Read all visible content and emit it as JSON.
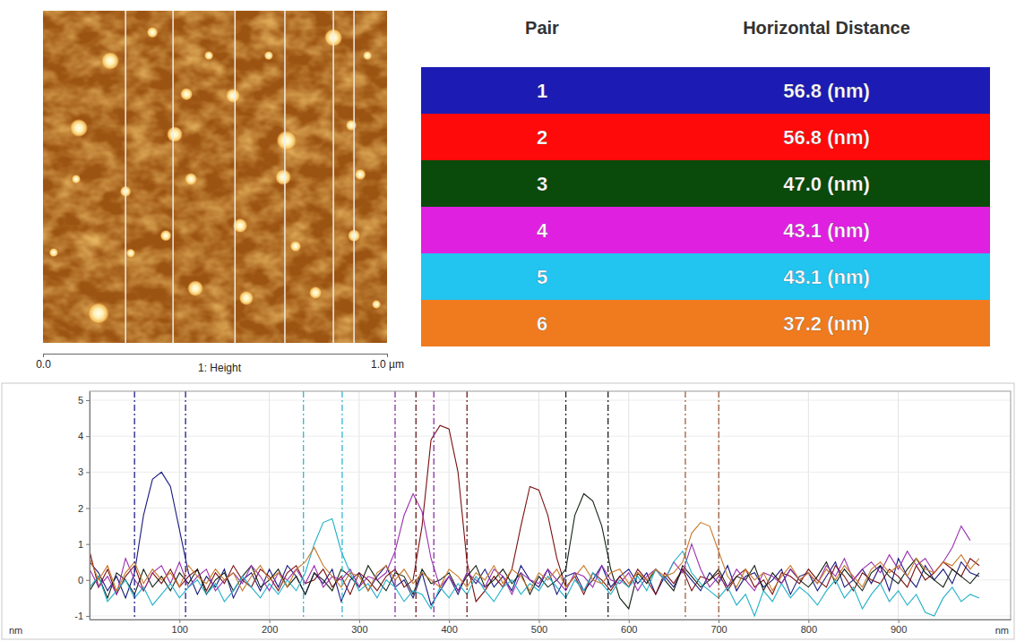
{
  "chart_data": {
    "type": "line",
    "x_label": "nm",
    "y_label": "nm",
    "xlim": [
      0,
      1025
    ],
    "xticks": [
      100,
      200,
      300,
      400,
      500,
      600,
      700,
      800,
      900
    ],
    "ylim": [
      -1.1,
      5.25
    ],
    "yticks": [
      -1,
      0,
      1,
      2,
      3,
      4,
      5
    ],
    "grid": true,
    "x": [
      0,
      10,
      20,
      30,
      40,
      50,
      60,
      70,
      80,
      90,
      100,
      110,
      120,
      130,
      140,
      150,
      160,
      170,
      180,
      190,
      200,
      210,
      220,
      230,
      240,
      250,
      260,
      270,
      280,
      290,
      300,
      310,
      320,
      330,
      340,
      350,
      360,
      370,
      380,
      390,
      400,
      410,
      420,
      430,
      440,
      450,
      460,
      470,
      480,
      490,
      500,
      510,
      520,
      530,
      540,
      550,
      560,
      570,
      580,
      590,
      600,
      610,
      620,
      630,
      640,
      650,
      660,
      670,
      680,
      690,
      700,
      710,
      720,
      730,
      740,
      750,
      760,
      770,
      780,
      790,
      800,
      810,
      820,
      830,
      840,
      850,
      860,
      870,
      880,
      890,
      900,
      910,
      920,
      930,
      940,
      950,
      960,
      970,
      980,
      990
    ],
    "series": [
      {
        "color": "#1a1a80",
        "values": [
          0.5,
          0.2,
          -0.3,
          0.1,
          -0.5,
          0.2,
          1.8,
          2.8,
          3.0,
          2.6,
          1.4,
          0.2,
          -0.4,
          0.1,
          -0.2,
          0.3,
          -0.5,
          0.0,
          0.2,
          -0.3,
          0.3,
          -0.2,
          0.4,
          0.1,
          -0.4,
          0.2,
          -0.1,
          0.3,
          -0.6,
          0.0,
          0.2,
          -0.3,
          0.1,
          0.4,
          -0.2,
          0.0,
          -0.5,
          0.2,
          -0.7,
          -0.3,
          0.1,
          -0.4,
          0.2,
          -0.1,
          0.3,
          -0.2,
          0.1,
          -0.3,
          0.4,
          0.0,
          -0.2,
          0.3,
          -0.4,
          0.1,
          0.2,
          -0.3,
          0.0,
          0.4,
          -0.2,
          0.1,
          0.3,
          -0.1,
          0.2,
          -0.4,
          0.1,
          -0.2,
          0.3,
          0.0,
          -0.3,
          0.2,
          -0.1,
          0.4,
          -0.3,
          0.1,
          0.2,
          -0.2,
          0.0,
          0.3,
          -0.4,
          0.1,
          0.2,
          -0.3,
          0.1,
          0.5,
          -0.2,
          0.0,
          0.3,
          -0.1,
          0.4,
          -0.3,
          0.6,
          0.1,
          -0.2,
          0.4,
          0.0,
          0.3,
          -0.1,
          0.5,
          0.2,
          0.1
        ]
      },
      {
        "color": "#7a1010",
        "values": [
          0.8,
          -0.2,
          0.3,
          -0.4,
          0.1,
          0.4,
          -0.3,
          0.2,
          -0.1,
          0.3,
          -0.2,
          0.1,
          0.3,
          -0.3,
          0.2,
          -0.1,
          0.4,
          0.0,
          -0.2,
          0.3,
          0.1,
          -0.3,
          0.2,
          0.4,
          -0.1,
          0.0,
          0.3,
          -0.2,
          0.1,
          -0.4,
          0.2,
          0.0,
          -0.3,
          0.1,
          0.3,
          -0.2,
          0.0,
          1.5,
          3.9,
          4.3,
          4.2,
          3.0,
          0.5,
          -0.6,
          -0.3,
          0.1,
          -0.2,
          0.3,
          1.5,
          2.6,
          2.5,
          1.8,
          0.6,
          -0.2,
          0.1,
          -0.4,
          0.2,
          0.0,
          -0.3,
          0.1,
          -0.2,
          0.3,
          0.0,
          -0.4,
          0.2,
          -0.1,
          0.3,
          -0.3,
          0.1,
          0.0,
          0.2,
          -0.3,
          0.1,
          0.3,
          -0.2,
          0.0,
          -0.4,
          0.2,
          0.1,
          -0.1,
          0.3,
          0.0,
          -0.2,
          0.4,
          0.1,
          -0.3,
          0.2,
          0.0,
          -0.1,
          0.3,
          0.1,
          -0.2,
          0.4,
          0.0,
          0.2,
          0.5,
          0.3,
          0.1,
          0.6,
          0.4
        ]
      },
      {
        "color": "#142414",
        "values": [
          -0.3,
          0.1,
          -0.5,
          0.2,
          0.0,
          -0.4,
          0.3,
          -0.2,
          0.1,
          -0.3,
          0.2,
          -0.1,
          0.3,
          -0.4,
          0.0,
          0.2,
          -0.3,
          0.1,
          0.4,
          -0.2,
          0.0,
          0.3,
          -0.2,
          0.1,
          -0.4,
          0.2,
          0.0,
          -0.3,
          0.3,
          0.1,
          -0.2,
          0.4,
          0.0,
          -0.3,
          0.2,
          0.1,
          -0.4,
          0.3,
          -0.1,
          0.0,
          0.2,
          -0.3,
          0.1,
          0.4,
          -0.2,
          0.0,
          0.3,
          -0.1,
          0.2,
          -0.4,
          0.1,
          -0.2,
          0.0,
          0.3,
          1.8,
          2.4,
          2.2,
          1.5,
          0.3,
          -0.5,
          -0.8,
          0.2,
          -0.1,
          0.3,
          0.0,
          -0.3,
          0.4,
          0.1,
          -0.2,
          0.0,
          0.3,
          -0.2,
          0.1,
          0.0,
          0.4,
          -0.3,
          0.2,
          -0.1,
          0.3,
          0.0,
          -0.2,
          0.1,
          0.5,
          -0.1,
          0.3,
          0.0,
          -0.3,
          0.2,
          0.4,
          0.1,
          -0.1,
          0.3,
          0.6,
          0.2,
          0.0,
          -0.2,
          0.3,
          0.1,
          -0.1,
          0.2
        ]
      },
      {
        "color": "#9a30b0",
        "values": [
          0.3,
          -0.2,
          0.1,
          -0.4,
          0.6,
          0.0,
          -0.3,
          0.2,
          0.4,
          -0.1,
          0.5,
          -0.2,
          0.1,
          0.3,
          -0.3,
          0.0,
          0.2,
          -0.1,
          0.4,
          0.1,
          -0.3,
          0.2,
          0.0,
          0.3,
          -0.1,
          0.4,
          -0.2,
          0.1,
          0.0,
          0.3,
          -0.2,
          0.1,
          0.0,
          0.2,
          0.8,
          1.8,
          2.4,
          1.9,
          0.6,
          -0.2,
          0.1,
          -0.3,
          0.2,
          0.0,
          -0.2,
          0.3,
          0.1,
          -0.4,
          0.2,
          0.0,
          -0.1,
          0.3,
          0.0,
          -0.3,
          0.2,
          0.1,
          -0.2,
          0.4,
          0.0,
          -0.1,
          0.2,
          -0.3,
          0.1,
          0.3,
          0.0,
          0.5,
          0.2,
          1.0,
          0.3,
          -0.2,
          0.1,
          -0.2,
          0.3,
          0.0,
          -0.3,
          0.2,
          0.1,
          -0.1,
          0.3,
          0.0,
          0.2,
          -0.1,
          0.4,
          0.1,
          0.6,
          0.0,
          0.3,
          0.5,
          0.2,
          0.7,
          0.3,
          0.8,
          0.4,
          0.6,
          0.2,
          0.5,
          0.9,
          1.5,
          1.1,
          null
        ]
      },
      {
        "color": "#20b0c8",
        "values": [
          -0.2,
          0.1,
          -0.6,
          -0.3,
          0.0,
          -0.5,
          -0.2,
          -0.7,
          -0.4,
          -0.1,
          -0.5,
          -0.2,
          0.0,
          -0.4,
          -0.1,
          -0.6,
          -0.3,
          0.1,
          -0.2,
          -0.5,
          -0.1,
          -0.4,
          0.0,
          -0.3,
          0.2,
          1.0,
          1.6,
          1.7,
          0.8,
          0.2,
          -0.3,
          -0.1,
          -0.5,
          0.0,
          -0.2,
          -0.6,
          -0.3,
          -0.4,
          -0.8,
          -0.2,
          -0.5,
          -0.1,
          -0.4,
          0.1,
          -0.3,
          -0.6,
          -0.2,
          0.0,
          -0.4,
          -0.1,
          -0.3,
          0.1,
          -0.2,
          -0.5,
          0.0,
          -0.3,
          0.2,
          -0.1,
          -0.4,
          0.0,
          -0.2,
          0.1,
          -0.3,
          0.3,
          0.0,
          0.5,
          0.8,
          0.2,
          -0.1,
          -0.3,
          -0.5,
          -0.2,
          -0.7,
          -0.4,
          -1.0,
          -0.3,
          -0.6,
          -0.1,
          -0.5,
          -0.2,
          -0.4,
          -0.7,
          -0.3,
          0.0,
          -0.5,
          -0.2,
          -0.8,
          -0.4,
          -0.1,
          -0.6,
          -0.3,
          -0.7,
          -0.4,
          -0.9,
          -1.0,
          -0.5,
          -0.2,
          -0.6,
          -0.4,
          -0.5
        ]
      },
      {
        "color": "#c87828",
        "values": [
          0.6,
          0.0,
          0.4,
          -0.3,
          0.2,
          0.5,
          -0.1,
          0.3,
          0.0,
          0.2,
          -0.2,
          0.4,
          0.1,
          -0.1,
          0.3,
          0.0,
          0.2,
          -0.3,
          0.1,
          0.4,
          0.0,
          0.2,
          -0.2,
          0.3,
          0.5,
          0.9,
          0.4,
          0.1,
          -0.2,
          0.2,
          0.1,
          -0.3,
          0.2,
          0.4,
          0.0,
          0.3,
          -0.1,
          0.2,
          0.0,
          -0.2,
          0.3,
          0.1,
          -0.2,
          0.2,
          0.0,
          0.4,
          -0.1,
          0.3,
          0.1,
          -0.3,
          0.2,
          0.0,
          0.3,
          -0.2,
          0.1,
          0.4,
          0.0,
          -0.1,
          0.2,
          0.3,
          -0.1,
          0.2,
          0.0,
          0.3,
          0.1,
          0.2,
          0.5,
          1.3,
          1.6,
          1.5,
          0.8,
          0.1,
          -0.2,
          0.3,
          0.0,
          0.2,
          -0.3,
          0.1,
          0.4,
          0.0,
          0.2,
          -0.1,
          0.3,
          0.0,
          0.4,
          0.1,
          -0.2,
          0.3,
          0.5,
          0.2,
          0.4,
          0.1,
          0.6,
          0.3,
          0.2,
          0.5,
          0.4,
          0.7,
          0.3,
          0.6
        ]
      }
    ],
    "cursors": [
      {
        "color": "#20208a",
        "x": [
          50,
          106.8
        ]
      },
      {
        "color": "#6a1a1a",
        "x": [
          363.2,
          420
        ]
      },
      {
        "color": "#202020",
        "x": [
          530,
          577
        ]
      },
      {
        "color": "#8a30a0",
        "x": [
          340,
          383.1
        ]
      },
      {
        "color": "#30b8d0",
        "x": [
          238,
          281.1
        ]
      },
      {
        "color": "#a06040",
        "x": [
          663,
          700.2
        ]
      }
    ]
  },
  "afm_image": {
    "caption": "1: Height",
    "xlim": [
      0,
      1
    ],
    "xticks": [
      {
        "value": 0,
        "label": "0.0"
      },
      {
        "value": 1,
        "label": "1.0 µm"
      }
    ],
    "profile_lines": [
      0.24,
      0.378,
      0.558,
      0.703,
      0.844,
      0.904
    ],
    "particles": [
      [
        0.195,
        0.151,
        0.026
      ],
      [
        0.104,
        0.353,
        0.026
      ],
      [
        0.161,
        0.911,
        0.031
      ],
      [
        0.383,
        0.372,
        0.023
      ],
      [
        0.417,
        0.251,
        0.018
      ],
      [
        0.552,
        0.256,
        0.021
      ],
      [
        0.708,
        0.391,
        0.029
      ],
      [
        0.698,
        0.501,
        0.023
      ],
      [
        0.844,
        0.081,
        0.026
      ],
      [
        0.43,
        0.507,
        0.018
      ],
      [
        0.24,
        0.544,
        0.016
      ],
      [
        0.573,
        0.647,
        0.021
      ],
      [
        0.443,
        0.836,
        0.023
      ],
      [
        0.591,
        0.865,
        0.021
      ],
      [
        0.792,
        0.849,
        0.018
      ],
      [
        0.904,
        0.677,
        0.018
      ],
      [
        0.922,
        0.493,
        0.016
      ],
      [
        0.357,
        0.677,
        0.016
      ],
      [
        0.318,
        0.065,
        0.016
      ],
      [
        0.482,
        0.135,
        0.013
      ],
      [
        0.656,
        0.135,
        0.013
      ],
      [
        0.943,
        0.135,
        0.013
      ],
      [
        0.896,
        0.345,
        0.016
      ],
      [
        0.096,
        0.507,
        0.013
      ],
      [
        0.031,
        0.728,
        0.013
      ],
      [
        0.255,
        0.73,
        0.013
      ],
      [
        0.734,
        0.709,
        0.016
      ],
      [
        0.969,
        0.884,
        0.013
      ]
    ]
  },
  "table": {
    "columns": [
      "Pair",
      "Horizontal Distance"
    ],
    "rows": [
      [
        "1",
        "56.8 (nm)"
      ],
      [
        "2",
        "56.8 (nm)"
      ],
      [
        "3",
        "47.0 (nm)"
      ],
      [
        "4",
        "43.1 (nm)"
      ],
      [
        "5",
        "43.1 (nm)"
      ],
      [
        "6",
        "37.2 (nm)"
      ]
    ],
    "row_colors": [
      "#1c1cb4",
      "#ff0a0a",
      "#0a4a0a",
      "#e020e0",
      "#22c4f0",
      "#f07a1e"
    ]
  }
}
